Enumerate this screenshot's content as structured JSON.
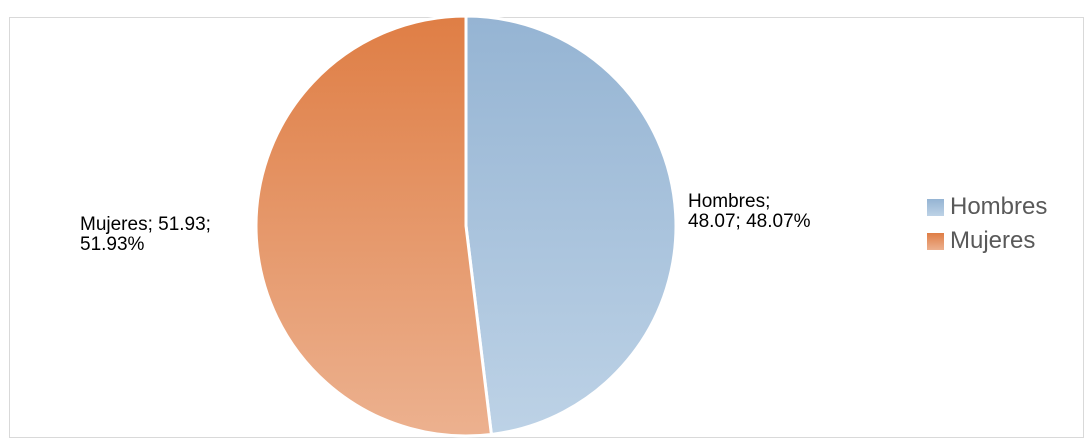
{
  "chart_data": {
    "type": "pie",
    "categories": [
      "Hombres",
      "Mujeres"
    ],
    "values": [
      48.07,
      51.93
    ],
    "percentages": [
      "48.07%",
      "51.93%"
    ],
    "data_labels": [
      {
        "line1": "Hombres;",
        "line2": "48.07; 48.07%"
      },
      {
        "line1": "Mujeres; 51.93;",
        "line2": "51.93%"
      }
    ],
    "colors": {
      "Hombres": {
        "top": "#95b4d3",
        "bottom": "#bdd2e6"
      },
      "Mujeres": {
        "top": "#df7e45",
        "bottom": "#ecb18f"
      }
    },
    "legend": {
      "position": "right",
      "items": [
        "Hombres",
        "Mujeres"
      ]
    },
    "start": "12 o'clock, clockwise"
  }
}
